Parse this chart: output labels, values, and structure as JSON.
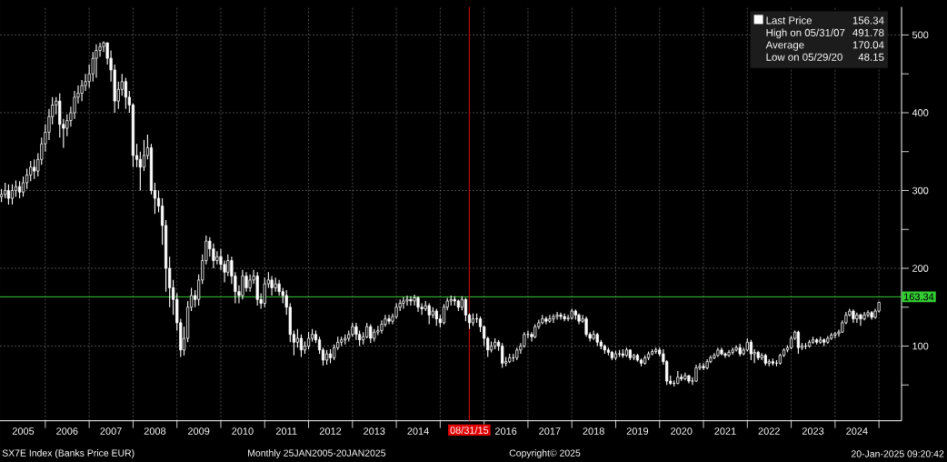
{
  "chart_data": {
    "type": "candlestick",
    "x": [
      "2005-01",
      "2005-02",
      "2005-03",
      "2005-04",
      "2005-05",
      "2005-06",
      "2005-07",
      "2005-08",
      "2005-09",
      "2005-10",
      "2005-11",
      "2005-12",
      "2006-01",
      "2006-02",
      "2006-03",
      "2006-04",
      "2006-05",
      "2006-06",
      "2006-07",
      "2006-08",
      "2006-09",
      "2006-10",
      "2006-11",
      "2006-12",
      "2007-01",
      "2007-02",
      "2007-03",
      "2007-04",
      "2007-05",
      "2007-06",
      "2007-07",
      "2007-08",
      "2007-09",
      "2007-10",
      "2007-11",
      "2007-12",
      "2008-01",
      "2008-02",
      "2008-03",
      "2008-04",
      "2008-05",
      "2008-06",
      "2008-07",
      "2008-08",
      "2008-09",
      "2008-10",
      "2008-11",
      "2008-12",
      "2009-01",
      "2009-02",
      "2009-03",
      "2009-04",
      "2009-05",
      "2009-06",
      "2009-07",
      "2009-08",
      "2009-09",
      "2009-10",
      "2009-11",
      "2009-12",
      "2010-01",
      "2010-02",
      "2010-03",
      "2010-04",
      "2010-05",
      "2010-06",
      "2010-07",
      "2010-08",
      "2010-09",
      "2010-10",
      "2010-11",
      "2010-12",
      "2011-01",
      "2011-02",
      "2011-03",
      "2011-04",
      "2011-05",
      "2011-06",
      "2011-07",
      "2011-08",
      "2011-09",
      "2011-10",
      "2011-11",
      "2011-12",
      "2012-01",
      "2012-02",
      "2012-03",
      "2012-04",
      "2012-05",
      "2012-06",
      "2012-07",
      "2012-08",
      "2012-09",
      "2012-10",
      "2012-11",
      "2012-12",
      "2013-01",
      "2013-02",
      "2013-03",
      "2013-04",
      "2013-05",
      "2013-06",
      "2013-07",
      "2013-08",
      "2013-09",
      "2013-10",
      "2013-11",
      "2013-12",
      "2014-01",
      "2014-02",
      "2014-03",
      "2014-04",
      "2014-05",
      "2014-06",
      "2014-07",
      "2014-08",
      "2014-09",
      "2014-10",
      "2014-11",
      "2014-12",
      "2015-01",
      "2015-02",
      "2015-03",
      "2015-04",
      "2015-05",
      "2015-06",
      "2015-07",
      "2015-08",
      "2015-09",
      "2015-10",
      "2015-11",
      "2015-12",
      "2016-01",
      "2016-02",
      "2016-03",
      "2016-04",
      "2016-05",
      "2016-06",
      "2016-07",
      "2016-08",
      "2016-09",
      "2016-10",
      "2016-11",
      "2016-12",
      "2017-01",
      "2017-02",
      "2017-03",
      "2017-04",
      "2017-05",
      "2017-06",
      "2017-07",
      "2017-08",
      "2017-09",
      "2017-10",
      "2017-11",
      "2017-12",
      "2018-01",
      "2018-02",
      "2018-03",
      "2018-04",
      "2018-05",
      "2018-06",
      "2018-07",
      "2018-08",
      "2018-09",
      "2018-10",
      "2018-11",
      "2018-12",
      "2019-01",
      "2019-02",
      "2019-03",
      "2019-04",
      "2019-05",
      "2019-06",
      "2019-07",
      "2019-08",
      "2019-09",
      "2019-10",
      "2019-11",
      "2019-12",
      "2020-01",
      "2020-02",
      "2020-03",
      "2020-04",
      "2020-05",
      "2020-06",
      "2020-07",
      "2020-08",
      "2020-09",
      "2020-10",
      "2020-11",
      "2020-12",
      "2021-01",
      "2021-02",
      "2021-03",
      "2021-04",
      "2021-05",
      "2021-06",
      "2021-07",
      "2021-08",
      "2021-09",
      "2021-10",
      "2021-11",
      "2021-12",
      "2022-01",
      "2022-02",
      "2022-03",
      "2022-04",
      "2022-05",
      "2022-06",
      "2022-07",
      "2022-08",
      "2022-09",
      "2022-10",
      "2022-11",
      "2022-12",
      "2023-01",
      "2023-02",
      "2023-03",
      "2023-04",
      "2023-05",
      "2023-06",
      "2023-07",
      "2023-08",
      "2023-09",
      "2023-10",
      "2023-11",
      "2023-12",
      "2024-01",
      "2024-02",
      "2024-03",
      "2024-04",
      "2024-05",
      "2024-06",
      "2024-07",
      "2024-08",
      "2024-09",
      "2024-10",
      "2024-11",
      "2024-12",
      "2025-01"
    ],
    "series": [
      {
        "name": "Last Price",
        "color": "#ffffff",
        "ohlc": [
          [
            292,
            302,
            285,
            295
          ],
          [
            295,
            310,
            290,
            300
          ],
          [
            300,
            308,
            282,
            290
          ],
          [
            290,
            308,
            282,
            300
          ],
          [
            300,
            313,
            292,
            305
          ],
          [
            305,
            312,
            290,
            298
          ],
          [
            298,
            318,
            292,
            310
          ],
          [
            310,
            328,
            302,
            320
          ],
          [
            320,
            338,
            312,
            330
          ],
          [
            330,
            340,
            315,
            325
          ],
          [
            325,
            348,
            318,
            340
          ],
          [
            340,
            368,
            333,
            360
          ],
          [
            360,
            385,
            350,
            375
          ],
          [
            375,
            405,
            365,
            395
          ],
          [
            395,
            420,
            385,
            410
          ],
          [
            410,
            420,
            398,
            415
          ],
          [
            415,
            425,
            368,
            385
          ],
          [
            385,
            392,
            355,
            380
          ],
          [
            380,
            398,
            370,
            390
          ],
          [
            390,
            408,
            382,
            400
          ],
          [
            400,
            428,
            392,
            420
          ],
          [
            420,
            435,
            412,
            425
          ],
          [
            425,
            442,
            415,
            435
          ],
          [
            435,
            450,
            428,
            440
          ],
          [
            440,
            462,
            432,
            450
          ],
          [
            450,
            478,
            440,
            470
          ],
          [
            470,
            488,
            445,
            480
          ],
          [
            480,
            490,
            472,
            485
          ],
          [
            485,
            491.78,
            478,
            490
          ],
          [
            490,
            490,
            462,
            470
          ],
          [
            470,
            480,
            440,
            455
          ],
          [
            455,
            462,
            400,
            415
          ],
          [
            415,
            440,
            405,
            430
          ],
          [
            430,
            450,
            422,
            440
          ],
          [
            440,
            445,
            405,
            420
          ],
          [
            420,
            428,
            400,
            410
          ],
          [
            410,
            412,
            330,
            345
          ],
          [
            345,
            360,
            330,
            340
          ],
          [
            340,
            350,
            300,
            330
          ],
          [
            330,
            365,
            325,
            345
          ],
          [
            345,
            372,
            340,
            355
          ],
          [
            355,
            360,
            295,
            300
          ],
          [
            300,
            310,
            270,
            290
          ],
          [
            290,
            300,
            272,
            280
          ],
          [
            280,
            290,
            230,
            255
          ],
          [
            255,
            262,
            170,
            200
          ],
          [
            200,
            215,
            150,
            175
          ],
          [
            175,
            185,
            140,
            160
          ],
          [
            160,
            168,
            120,
            130
          ],
          [
            130,
            135,
            86,
            95
          ],
          [
            95,
            125,
            88,
            110
          ],
          [
            110,
            158,
            105,
            150
          ],
          [
            150,
            175,
            145,
            165
          ],
          [
            165,
            172,
            150,
            160
          ],
          [
            160,
            192,
            152,
            185
          ],
          [
            185,
            218,
            180,
            210
          ],
          [
            210,
            242,
            205,
            235
          ],
          [
            235,
            240,
            215,
            225
          ],
          [
            225,
            232,
            200,
            210
          ],
          [
            210,
            222,
            205,
            215
          ],
          [
            215,
            225,
            198,
            205
          ],
          [
            205,
            210,
            182,
            195
          ],
          [
            195,
            218,
            190,
            210
          ],
          [
            210,
            215,
            180,
            190
          ],
          [
            190,
            195,
            155,
            170
          ],
          [
            170,
            178,
            155,
            165
          ],
          [
            165,
            198,
            160,
            190
          ],
          [
            190,
            195,
            170,
            175
          ],
          [
            175,
            192,
            170,
            185
          ],
          [
            185,
            198,
            180,
            190
          ],
          [
            190,
            195,
            152,
            160
          ],
          [
            160,
            168,
            148,
            155
          ],
          [
            155,
            188,
            150,
            180
          ],
          [
            180,
            195,
            175,
            185
          ],
          [
            185,
            190,
            165,
            175
          ],
          [
            175,
            188,
            170,
            180
          ],
          [
            180,
            185,
            165,
            170
          ],
          [
            170,
            175,
            155,
            165
          ],
          [
            165,
            172,
            140,
            150
          ],
          [
            150,
            155,
            105,
            115
          ],
          [
            115,
            120,
            88,
            105
          ],
          [
            105,
            122,
            98,
            110
          ],
          [
            110,
            115,
            86,
            95
          ],
          [
            95,
            106,
            90,
            100
          ],
          [
            100,
            118,
            96,
            110
          ],
          [
            110,
            122,
            106,
            115
          ],
          [
            115,
            120,
            104,
            108
          ],
          [
            108,
            112,
            90,
            95
          ],
          [
            95,
            98,
            75,
            82
          ],
          [
            82,
            95,
            76,
            90
          ],
          [
            90,
            96,
            78,
            85
          ],
          [
            85,
            102,
            82,
            98
          ],
          [
            98,
            112,
            95,
            105
          ],
          [
            105,
            112,
            100,
            108
          ],
          [
            108,
            115,
            102,
            110
          ],
          [
            110,
            120,
            106,
            115
          ],
          [
            115,
            130,
            112,
            125
          ],
          [
            125,
            130,
            108,
            115
          ],
          [
            115,
            120,
            100,
            108
          ],
          [
            108,
            118,
            102,
            112
          ],
          [
            112,
            130,
            110,
            125
          ],
          [
            125,
            128,
            104,
            110
          ],
          [
            110,
            122,
            106,
            118
          ],
          [
            118,
            126,
            114,
            120
          ],
          [
            120,
            133,
            116,
            128
          ],
          [
            128,
            140,
            125,
            135
          ],
          [
            135,
            140,
            128,
            132
          ],
          [
            132,
            142,
            128,
            138
          ],
          [
            138,
            155,
            135,
            150
          ],
          [
            150,
            160,
            145,
            155
          ],
          [
            155,
            163,
            148,
            158
          ],
          [
            158,
            165,
            152,
            160
          ],
          [
            160,
            164,
            152,
            158
          ],
          [
            158,
            166,
            152,
            162
          ],
          [
            162,
            164,
            144,
            150
          ],
          [
            150,
            155,
            140,
            148
          ],
          [
            148,
            158,
            145,
            152
          ],
          [
            152,
            155,
            128,
            140
          ],
          [
            140,
            150,
            136,
            145
          ],
          [
            145,
            148,
            126,
            135
          ],
          [
            135,
            140,
            124,
            130
          ],
          [
            130,
            154,
            128,
            150
          ],
          [
            150,
            162,
            146,
            158
          ],
          [
            158,
            165,
            152,
            160
          ],
          [
            160,
            164,
            152,
            158
          ],
          [
            158,
            160,
            145,
            150
          ],
          [
            150,
            164,
            146,
            160
          ],
          [
            160,
            162,
            132,
            140
          ],
          [
            140,
            142,
            122,
            130
          ],
          [
            130,
            142,
            126,
            135
          ],
          [
            135,
            142,
            130,
            135
          ],
          [
            135,
            138,
            118,
            125
          ],
          [
            125,
            126,
            100,
            110
          ],
          [
            110,
            112,
            86,
            95
          ],
          [
            95,
            106,
            92,
            100
          ],
          [
            100,
            110,
            96,
            105
          ],
          [
            105,
            108,
            94,
            100
          ],
          [
            100,
            104,
            72,
            78
          ],
          [
            78,
            86,
            74,
            80
          ],
          [
            80,
            90,
            78,
            85
          ],
          [
            85,
            90,
            80,
            85
          ],
          [
            85,
            98,
            82,
            95
          ],
          [
            95,
            104,
            90,
            100
          ],
          [
            100,
            118,
            98,
            115
          ],
          [
            115,
            120,
            110,
            115
          ],
          [
            115,
            118,
            106,
            112
          ],
          [
            112,
            128,
            110,
            125
          ],
          [
            125,
            134,
            122,
            130
          ],
          [
            130,
            140,
            128,
            135
          ],
          [
            135,
            138,
            128,
            132
          ],
          [
            132,
            140,
            130,
            135
          ],
          [
            135,
            141,
            130,
            138
          ],
          [
            138,
            144,
            134,
            140
          ],
          [
            140,
            143,
            134,
            138
          ],
          [
            138,
            142,
            132,
            135
          ],
          [
            135,
            140,
            132,
            136
          ],
          [
            136,
            148,
            134,
            145
          ],
          [
            145,
            147,
            134,
            140
          ],
          [
            140,
            142,
            128,
            132
          ],
          [
            132,
            140,
            130,
            135
          ],
          [
            135,
            138,
            112,
            115
          ],
          [
            115,
            118,
            106,
            110
          ],
          [
            110,
            120,
            108,
            115
          ],
          [
            115,
            117,
            100,
            105
          ],
          [
            105,
            108,
            96,
            100
          ],
          [
            100,
            102,
            90,
            95
          ],
          [
            95,
            98,
            88,
            92
          ],
          [
            92,
            94,
            82,
            85
          ],
          [
            85,
            94,
            82,
            90
          ],
          [
            90,
            95,
            86,
            90
          ],
          [
            90,
            96,
            85,
            88
          ],
          [
            88,
            98,
            86,
            95
          ],
          [
            95,
            96,
            82,
            85
          ],
          [
            85,
            90,
            82,
            88
          ],
          [
            88,
            90,
            80,
            82
          ],
          [
            82,
            84,
            74,
            78
          ],
          [
            78,
            88,
            76,
            85
          ],
          [
            85,
            93,
            82,
            90
          ],
          [
            90,
            96,
            88,
            93
          ],
          [
            93,
            98,
            90,
            95
          ],
          [
            95,
            98,
            87,
            90
          ],
          [
            90,
            96,
            76,
            80
          ],
          [
            80,
            82,
            50,
            55
          ],
          [
            55,
            62,
            50,
            52
          ],
          [
            52,
            56,
            48.15,
            52
          ],
          [
            52,
            68,
            51,
            60
          ],
          [
            60,
            64,
            55,
            58
          ],
          [
            58,
            66,
            56,
            62
          ],
          [
            62,
            63,
            52,
            55
          ],
          [
            55,
            60,
            50,
            55
          ],
          [
            55,
            76,
            54,
            72
          ],
          [
            72,
            78,
            69,
            74
          ],
          [
            74,
            78,
            69,
            72
          ],
          [
            72,
            83,
            70,
            80
          ],
          [
            80,
            88,
            78,
            85
          ],
          [
            85,
            91,
            83,
            88
          ],
          [
            88,
            98,
            86,
            95
          ],
          [
            95,
            98,
            88,
            90
          ],
          [
            90,
            92,
            85,
            88
          ],
          [
            88,
            95,
            86,
            92
          ],
          [
            92,
            98,
            89,
            95
          ],
          [
            95,
            101,
            93,
            98
          ],
          [
            98,
            103,
            87,
            90
          ],
          [
            90,
            98,
            88,
            95
          ],
          [
            95,
            110,
            93,
            105
          ],
          [
            105,
            108,
            82,
            90
          ],
          [
            90,
            96,
            78,
            92
          ],
          [
            92,
            94,
            82,
            85
          ],
          [
            85,
            91,
            82,
            88
          ],
          [
            88,
            90,
            75,
            78
          ],
          [
            78,
            83,
            74,
            80
          ],
          [
            80,
            84,
            75,
            78
          ],
          [
            78,
            82,
            74,
            78
          ],
          [
            78,
            90,
            76,
            88
          ],
          [
            88,
            97,
            86,
            95
          ],
          [
            95,
            101,
            92,
            98
          ],
          [
            98,
            113,
            96,
            110
          ],
          [
            110,
            120,
            108,
            118
          ],
          [
            118,
            120,
            90,
            98
          ],
          [
            98,
            104,
            95,
            100
          ],
          [
            100,
            104,
            96,
            100
          ],
          [
            100,
            108,
            98,
            105
          ],
          [
            105,
            112,
            103,
            108
          ],
          [
            108,
            110,
            102,
            105
          ],
          [
            105,
            112,
            103,
            108
          ],
          [
            108,
            110,
            100,
            105
          ],
          [
            105,
            113,
            103,
            110
          ],
          [
            110,
            117,
            108,
            114
          ],
          [
            114,
            118,
            110,
            116
          ],
          [
            116,
            121,
            112,
            118
          ],
          [
            118,
            133,
            117,
            130
          ],
          [
            130,
            144,
            128,
            140
          ],
          [
            140,
            148,
            138,
            145
          ],
          [
            145,
            147,
            130,
            135
          ],
          [
            135,
            143,
            130,
            140
          ],
          [
            140,
            142,
            126,
            135
          ],
          [
            135,
            144,
            133,
            140
          ],
          [
            140,
            146,
            137,
            143
          ],
          [
            143,
            145,
            134,
            137
          ],
          [
            137,
            148,
            135,
            145
          ],
          [
            145,
            157,
            143,
            156.34
          ]
        ]
      }
    ],
    "xlim": [
      "2004-12-20",
      "2025-07-08"
    ],
    "ylim": [
      4,
      536
    ],
    "xticks": [
      {
        "value": "2005-07-01",
        "label": "2005"
      },
      {
        "value": "2006-07-01",
        "label": "2006"
      },
      {
        "value": "2007-07-01",
        "label": "2007"
      },
      {
        "value": "2008-07-01",
        "label": "2008"
      },
      {
        "value": "2009-07-01",
        "label": "2009"
      },
      {
        "value": "2010-07-01",
        "label": "2010"
      },
      {
        "value": "2011-07-01",
        "label": "2011"
      },
      {
        "value": "2012-07-01",
        "label": "2012"
      },
      {
        "value": "2013-07-01",
        "label": "2013"
      },
      {
        "value": "2014-07-01",
        "label": "2014"
      },
      {
        "value": "2016-07-01",
        "label": "2016"
      },
      {
        "value": "2017-07-01",
        "label": "2017"
      },
      {
        "value": "2018-07-01",
        "label": "2018"
      },
      {
        "value": "2019-07-01",
        "label": "2019"
      },
      {
        "value": "2020-07-01",
        "label": "2020"
      },
      {
        "value": "2021-07-01",
        "label": "2021"
      },
      {
        "value": "2022-07-01",
        "label": "2022"
      },
      {
        "value": "2023-07-01",
        "label": "2023"
      },
      {
        "value": "2024-07-01",
        "label": "2024"
      },
      {
        "value": "2006-01-01",
        "label": null
      },
      {
        "value": "2007-01-01",
        "label": null
      },
      {
        "value": "2008-01-01",
        "label": null
      },
      {
        "value": "2009-01-01",
        "label": null
      },
      {
        "value": "2010-01-01",
        "label": null
      },
      {
        "value": "2011-01-01",
        "label": null
      },
      {
        "value": "2012-01-01",
        "label": null
      },
      {
        "value": "2013-01-01",
        "label": null
      },
      {
        "value": "2014-01-01",
        "label": null
      },
      {
        "value": "2015-01-01",
        "label": null
      },
      {
        "value": "2016-01-01",
        "label": null
      },
      {
        "value": "2017-01-01",
        "label": null
      },
      {
        "value": "2018-01-01",
        "label": null
      },
      {
        "value": "2019-01-01",
        "label": null
      },
      {
        "value": "2020-01-01",
        "label": null
      },
      {
        "value": "2021-01-01",
        "label": null
      },
      {
        "value": "2022-01-01",
        "label": null
      },
      {
        "value": "2023-01-01",
        "label": null
      },
      {
        "value": "2024-01-01",
        "label": null
      },
      {
        "value": "2025-01-01",
        "label": null
      }
    ],
    "yticks": [
      100,
      200,
      300,
      400,
      500,
      {
        "value": 50,
        "label": null
      },
      {
        "value": 150,
        "label": null
      },
      {
        "value": 250,
        "label": null
      },
      {
        "value": 350,
        "label": null
      },
      {
        "value": 450,
        "label": null
      }
    ],
    "grid": true,
    "legend": "top right",
    "ref_lines": [
      {
        "axis": "y",
        "value": 163.34,
        "label": "163.34",
        "color": "#33cc33"
      },
      {
        "axis": "x",
        "value": "2015-08-31",
        "label": "08/31/15",
        "color": "#e00000"
      }
    ],
    "annotations": [
      "156.34",
      "High on 05/31/07",
      "491.78",
      "Average",
      "170.04",
      "Low on 05/29/20",
      "48.15",
      "SX7E Index (Banks Price EUR)",
      "Monthly 25JAN2005-20JAN2025",
      "Copyright© 2025",
      "20-Jan-2025 09:20:42"
    ]
  }
}
